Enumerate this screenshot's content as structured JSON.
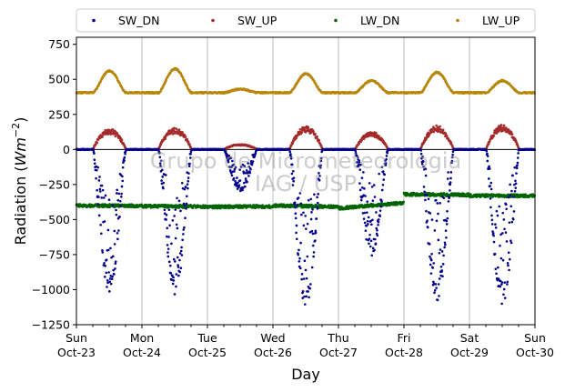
{
  "chart_data": {
    "type": "scatter",
    "xlabel": "Day",
    "ylabel_main": "Radiation (",
    "ylabel_unit": "Wm",
    "ylabel_exp": "−2",
    "ylabel_close": ")",
    "ylim": [
      -1250,
      800
    ],
    "xlim": [
      0,
      7
    ],
    "yticks": [
      {
        "value": 750,
        "label": "750"
      },
      {
        "value": 500,
        "label": "500"
      },
      {
        "value": 250,
        "label": "250"
      },
      {
        "value": 0,
        "label": "0"
      },
      {
        "value": -250,
        "label": "−250"
      },
      {
        "value": -500,
        "label": "−500"
      },
      {
        "value": -750,
        "label": "−750"
      },
      {
        "value": -1000,
        "label": "−1000"
      },
      {
        "value": -1250,
        "label": "−1250"
      }
    ],
    "xticks": [
      {
        "value": 0,
        "line1": "Sun",
        "line2": "Oct-23"
      },
      {
        "value": 1,
        "line1": "Mon",
        "line2": "Oct-24"
      },
      {
        "value": 2,
        "line1": "Tue",
        "line2": "Oct-25"
      },
      {
        "value": 3,
        "line1": "Wed",
        "line2": "Oct-26"
      },
      {
        "value": 4,
        "line1": "Thu",
        "line2": "Oct-27"
      },
      {
        "value": 5,
        "line1": "Fri",
        "line2": "Oct-28"
      },
      {
        "value": 6,
        "line1": "Sat",
        "line2": "Oct-29"
      },
      {
        "value": 7,
        "line1": "Sun",
        "line2": "Oct-30"
      }
    ],
    "grid": "vertical",
    "legend_placement": "top",
    "watermark_line1": "Grupo de Micrometeorologia",
    "watermark_line2": "IAG / USP",
    "series": [
      {
        "name": "SW_DN",
        "color": "#00008b",
        "daily_peak": [
          -1030,
          -1040,
          -300,
          -1130,
          -760,
          -1100,
          -1150
        ]
      },
      {
        "name": "SW_UP",
        "color": "#a52a2a",
        "daily_peak": [
          135,
          140,
          35,
          150,
          115,
          155,
          160
        ]
      },
      {
        "name": "LW_DN",
        "color": "#006400",
        "daily_mean": [
          -400,
          -405,
          -410,
          -400,
          -420,
          -320,
          -330
        ]
      },
      {
        "name": "LW_UP",
        "color": "#b8860b",
        "night_base": 405,
        "daily_peak": [
          560,
          575,
          430,
          540,
          490,
          550,
          490
        ]
      }
    ]
  }
}
